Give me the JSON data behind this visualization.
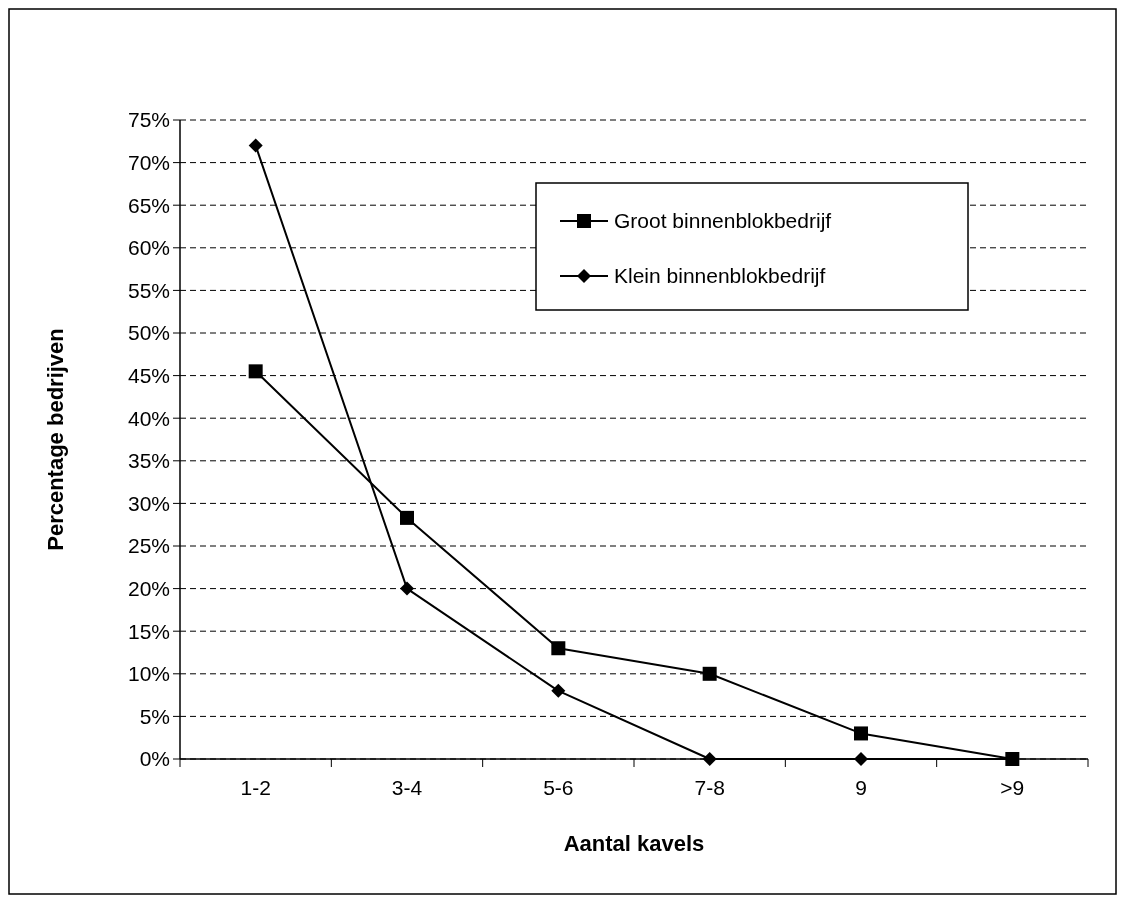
{
  "chart_data": {
    "type": "line",
    "xlabel": "Aantal kavels",
    "ylabel": "Percentage bedrijven",
    "categories": [
      "1-2",
      "3-4",
      "5-6",
      "7-8",
      "9",
      ">9"
    ],
    "series": [
      {
        "name": "Groot binnenblokbedrijf",
        "color": "#000000",
        "marker": "square",
        "values": [
          45.5,
          28.3,
          13,
          10,
          3,
          0
        ]
      },
      {
        "name": "Klein binnenblokbedrijf",
        "color": "#000000",
        "marker": "diamond",
        "values": [
          72,
          20,
          8,
          0,
          0,
          0
        ]
      }
    ],
    "ylim": [
      0,
      75
    ],
    "yticks": [
      {
        "value": 0,
        "label": "0%"
      },
      {
        "value": 5,
        "label": "5%"
      },
      {
        "value": 10,
        "label": "10%"
      },
      {
        "value": 15,
        "label": "15%"
      },
      {
        "value": 20,
        "label": "20%"
      },
      {
        "value": 25,
        "label": "25%"
      },
      {
        "value": 30,
        "label": "30%"
      },
      {
        "value": 35,
        "label": "35%"
      },
      {
        "value": 40,
        "label": "40%"
      },
      {
        "value": 45,
        "label": "45%"
      },
      {
        "value": 50,
        "label": "50%"
      },
      {
        "value": 55,
        "label": "55%"
      },
      {
        "value": 60,
        "label": "60%"
      },
      {
        "value": 65,
        "label": "65%"
      },
      {
        "value": 70,
        "label": "70%"
      },
      {
        "value": 75,
        "label": "75%"
      }
    ],
    "grid": "y",
    "legend": "top right",
    "line_style": "solid"
  }
}
